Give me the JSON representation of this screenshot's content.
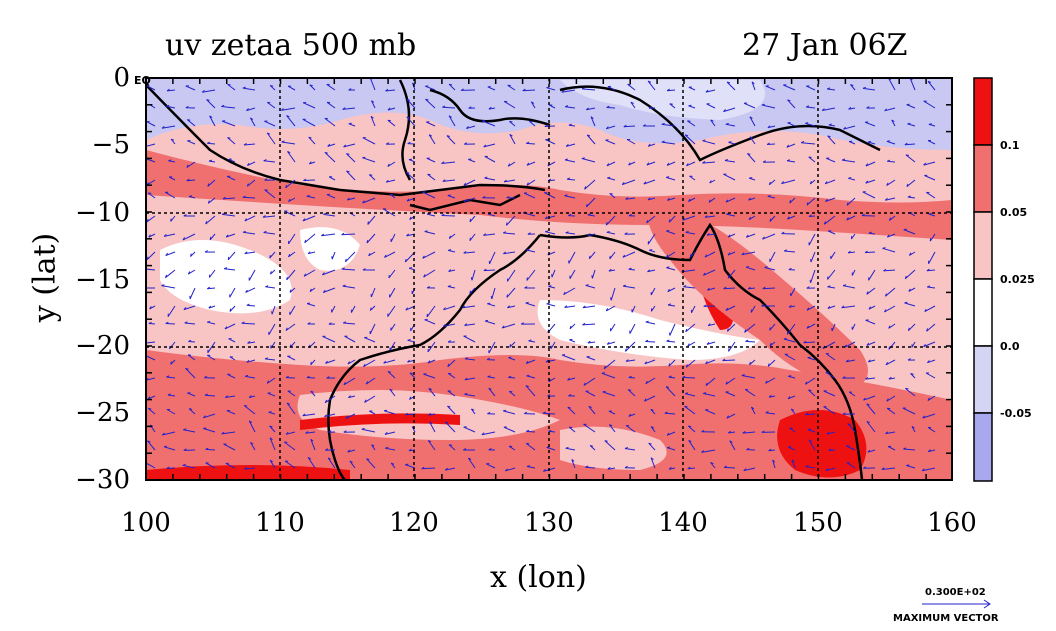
{
  "header": {
    "title_left": "uv zetaa 500 mb",
    "title_right": "27 Jan 06Z"
  },
  "map": {
    "eq_label": "EQ",
    "xlabel": "x (lon)",
    "ylabel": "y (lat)",
    "lon_ticks": [
      "100",
      "110",
      "120",
      "130",
      "140",
      "150",
      "160"
    ],
    "lat_ticks": [
      "0",
      "−5",
      "−10",
      "−15",
      "−20",
      "−25",
      "−30"
    ],
    "lon_range": [
      100,
      160
    ],
    "lat_range": [
      -30,
      0
    ],
    "grid": true,
    "vector_color": "#2222cc",
    "coast_color": "#000000"
  },
  "colorbar": {
    "ticks": [
      "0.1",
      "0.05",
      "0.025",
      "0.0",
      "-0.05"
    ],
    "colors": [
      "#ee1111",
      "#f07070",
      "#f8c4c4",
      "#ffffff",
      "#d4d4f4",
      "#a8a8ee"
    ]
  },
  "max_vector": {
    "value": "0.300E+02",
    "label": "MAXIMUM VECTOR"
  }
}
